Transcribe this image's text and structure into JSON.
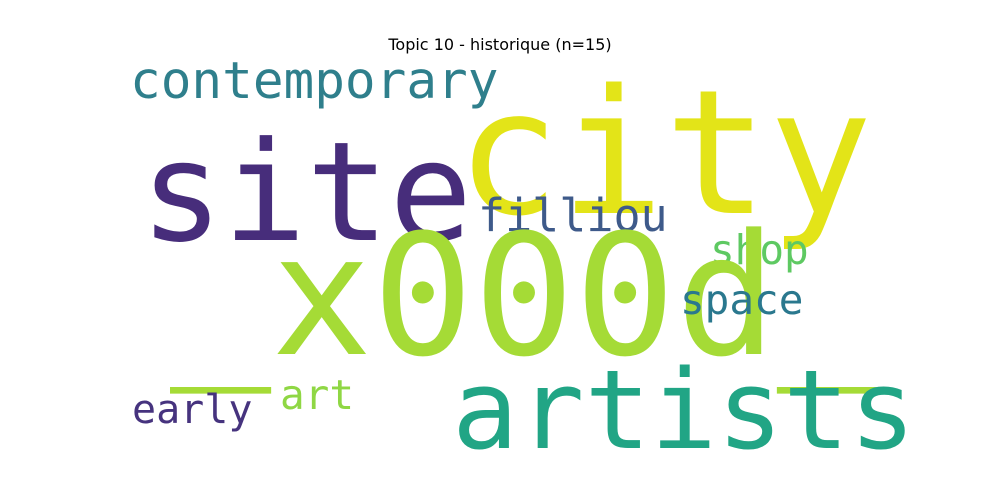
{
  "title": "Topic 10 - historique (n=15)",
  "words": {
    "contemporary": {
      "text": "contemporary",
      "color": "#2f7f8c"
    },
    "site": {
      "text": "site",
      "color": "#472d7b"
    },
    "city": {
      "text": "city",
      "color": "#e3e418"
    },
    "filliou": {
      "text": "filliou",
      "color": "#3e5a8a"
    },
    "shop": {
      "text": "shop",
      "color": "#5ec962"
    },
    "x000d": {
      "text": "_x000d_",
      "color": "#a5db36"
    },
    "space": {
      "text": "space",
      "color": "#2a788e"
    },
    "early": {
      "text": "early",
      "color": "#46337e"
    },
    "art": {
      "text": "art",
      "color": "#8fd744"
    },
    "artists": {
      "text": "artists",
      "color": "#21a585"
    }
  }
}
